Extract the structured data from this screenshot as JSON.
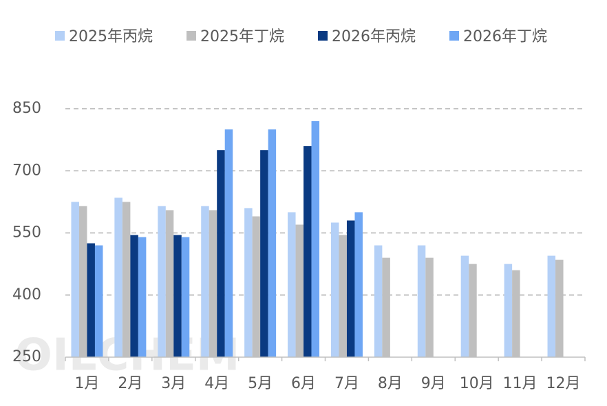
{
  "chart_data": {
    "type": "bar",
    "watermark": "OILCHEM",
    "categories": [
      "1月",
      "2月",
      "3月",
      "4月",
      "5月",
      "6月",
      "7月",
      "8月",
      "9月",
      "10月",
      "11月",
      "12月"
    ],
    "series": [
      {
        "name": "2025年丙烷",
        "color": "#b4d0f7",
        "values": [
          625,
          635,
          615,
          615,
          610,
          600,
          575,
          520,
          520,
          495,
          475,
          495
        ]
      },
      {
        "name": "2025年丁烷",
        "color": "#bfbfbf",
        "values": [
          615,
          625,
          605,
          605,
          590,
          570,
          545,
          490,
          490,
          475,
          460,
          485
        ]
      },
      {
        "name": "2026年丙烷",
        "color": "#0a3a82",
        "values": [
          525,
          545,
          545,
          750,
          750,
          760,
          580,
          null,
          null,
          null,
          null,
          null
        ]
      },
      {
        "name": "2026年丁烷",
        "color": "#6ea6f4",
        "values": [
          520,
          540,
          540,
          800,
          800,
          820,
          600,
          null,
          null,
          null,
          null,
          null
        ]
      }
    ],
    "ylim": [
      250,
      850
    ],
    "yticks": [
      250,
      400,
      550,
      700,
      850
    ],
    "grid": true
  }
}
